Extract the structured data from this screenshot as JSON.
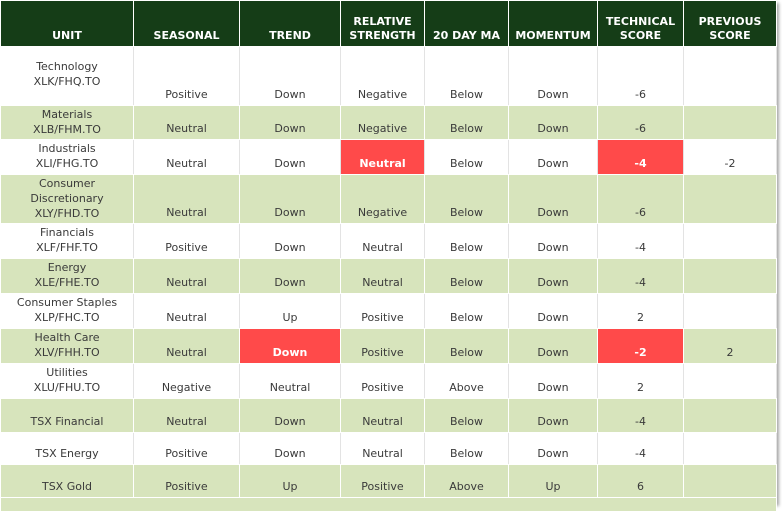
{
  "table": {
    "headers": [
      "UNIT",
      "SEASONAL",
      "TREND",
      "RELATIVE STRENGTH",
      "20 DAY MA",
      "MOMENTUM",
      "TECHNICAL SCORE",
      "PREVIOUS SCORE"
    ],
    "highlight_color": "#ff4a4a",
    "header_color": "#153d17",
    "stripe_color": "#d7e4bc",
    "rows": [
      {
        "unit_line1": "Technology",
        "unit_line2": "XLK/FHQ.TO",
        "seasonal": "Positive",
        "trend": "Down",
        "relative_strength": "Negative",
        "ma20": "Below",
        "momentum": "Down",
        "technical_score": "-6",
        "previous_score": ""
      },
      {
        "unit_line1": "Materials",
        "unit_line2": "XLB/FHM.TO",
        "seasonal": "Neutral",
        "trend": "Down",
        "relative_strength": "Negative",
        "ma20": "Below",
        "momentum": "Down",
        "technical_score": "-6",
        "previous_score": ""
      },
      {
        "unit_line1": "Industrials",
        "unit_line2": "XLI/FHG.TO",
        "seasonal": "Neutral",
        "trend": "Down",
        "relative_strength": "Neutral",
        "ma20": "Below",
        "momentum": "Down",
        "technical_score": "-4",
        "previous_score": "-2"
      },
      {
        "unit_line1": "Consumer",
        "unit_line1b": "Discretionary",
        "unit_line2": "XLY/FHD.TO",
        "seasonal": "Neutral",
        "trend": "Down",
        "relative_strength": "Negative",
        "ma20": "Below",
        "momentum": "Down",
        "technical_score": "-6",
        "previous_score": ""
      },
      {
        "unit_line1": "Financials",
        "unit_line2": "XLF/FHF.TO",
        "seasonal": "Positive",
        "trend": "Down",
        "relative_strength": "Neutral",
        "ma20": "Below",
        "momentum": "Down",
        "technical_score": "-4",
        "previous_score": ""
      },
      {
        "unit_line1": "Energy",
        "unit_line2": "XLE/FHE.TO",
        "seasonal": "Neutral",
        "trend": "Down",
        "relative_strength": "Neutral",
        "ma20": "Below",
        "momentum": "Down",
        "technical_score": "-4",
        "previous_score": ""
      },
      {
        "unit_line1": "Consumer Staples",
        "unit_line2": "XLP/FHC.TO",
        "seasonal": "Neutral",
        "trend": "Up",
        "relative_strength": "Positive",
        "ma20": "Below",
        "momentum": "Down",
        "technical_score": "2",
        "previous_score": ""
      },
      {
        "unit_line1": "Health Care",
        "unit_line2": "XLV/FHH.TO",
        "seasonal": "Neutral",
        "trend": "Down",
        "relative_strength": "Positive",
        "ma20": "Below",
        "momentum": "Down",
        "technical_score": "-2",
        "previous_score": "2"
      },
      {
        "unit_line1": "Utilities",
        "unit_line2": "XLU/FHU.TO",
        "seasonal": "Negative",
        "trend": "Neutral",
        "relative_strength": "Positive",
        "ma20": "Above",
        "momentum": "Down",
        "technical_score": "2",
        "previous_score": ""
      },
      {
        "unit_line1": "TSX Financial",
        "seasonal": "Neutral",
        "trend": "Down",
        "relative_strength": "Neutral",
        "ma20": "Below",
        "momentum": "Down",
        "technical_score": "-4",
        "previous_score": ""
      },
      {
        "unit_line1": "TSX Energy",
        "seasonal": "Positive",
        "trend": "Down",
        "relative_strength": "Neutral",
        "ma20": "Below",
        "momentum": "Down",
        "technical_score": "-4",
        "previous_score": ""
      },
      {
        "unit_line1": "TSX Gold",
        "seasonal": "Positive",
        "trend": "Up",
        "relative_strength": "Positive",
        "ma20": "Above",
        "momentum": "Up",
        "technical_score": "6",
        "previous_score": ""
      }
    ]
  }
}
